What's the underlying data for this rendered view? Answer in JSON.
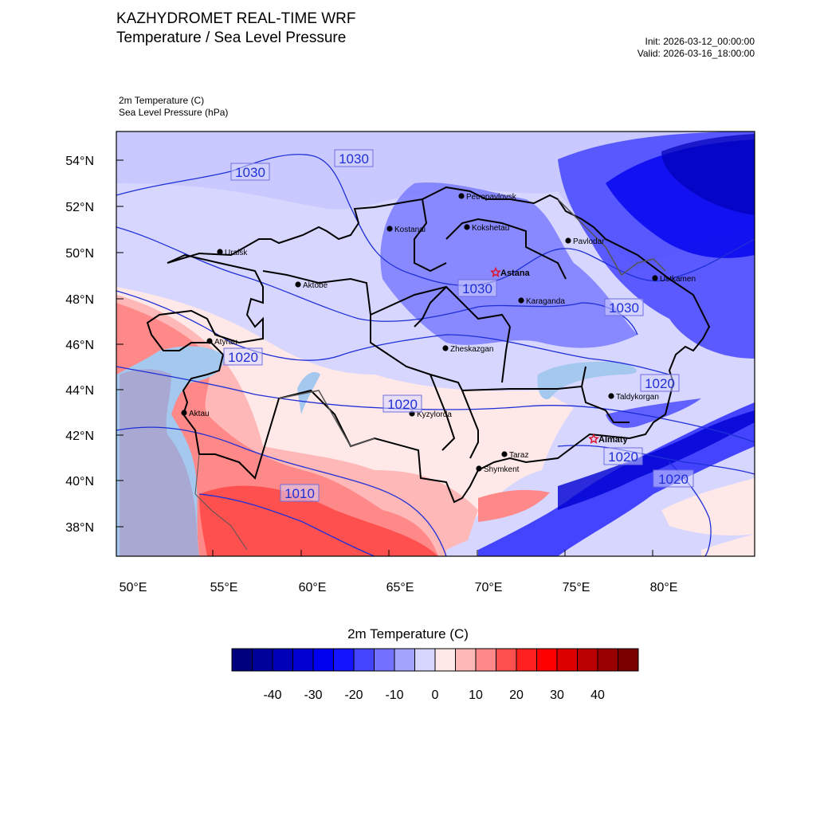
{
  "header": {
    "title": "KAZHYDROMET REAL-TIME WRF",
    "subtitle": "Temperature / Sea Level Pressure",
    "init": "Init: 2026-03-12_00:00:00",
    "valid": "Valid: 2026-03-16_18:00:00"
  },
  "variables": {
    "temperature": "2m Temperature   (C)",
    "pressure": "Sea Level Pressure   (hPa)"
  },
  "map": {
    "lon_labels": [
      "50°E",
      "55°E",
      "60°E",
      "65°E",
      "70°E",
      "75°E",
      "80°E"
    ],
    "lat_labels": [
      "54°N",
      "52°N",
      "50°N",
      "48°N",
      "46°N",
      "44°N",
      "42°N",
      "40°N",
      "38°N"
    ],
    "cities": [
      {
        "name": "Petropavlovsk",
        "capital": false
      },
      {
        "name": "Kostanai",
        "capital": false
      },
      {
        "name": "Kokshetau",
        "capital": false
      },
      {
        "name": "Pavlodar",
        "capital": false
      },
      {
        "name": "Uralsk",
        "capital": false
      },
      {
        "name": "Aktobe",
        "capital": false
      },
      {
        "name": "Astana",
        "capital": true
      },
      {
        "name": "Ustkamen",
        "capital": false
      },
      {
        "name": "Karaganda",
        "capital": false
      },
      {
        "name": "Atyrau",
        "capital": false
      },
      {
        "name": "Zheskazgan",
        "capital": false
      },
      {
        "name": "Taldykorgan",
        "capital": false
      },
      {
        "name": "Aktau",
        "capital": false
      },
      {
        "name": "Kyzylorda",
        "capital": false
      },
      {
        "name": "Almaty",
        "capital": true
      },
      {
        "name": "Taraz",
        "capital": false
      },
      {
        "name": "Shymkent",
        "capital": false
      }
    ],
    "isobar_labels": [
      "1030",
      "1030",
      "1030",
      "1030",
      "1020",
      "1020",
      "1020",
      "1020",
      "1020",
      "1010"
    ]
  },
  "colorbar": {
    "title": "2m Temperature  (C)",
    "ticks": [
      "-40",
      "-30",
      "-20",
      "-10",
      "0",
      "10",
      "20",
      "30",
      "40"
    ],
    "colors": [
      "#00007e",
      "#00009a",
      "#0000b6",
      "#0000d2",
      "#0000ee",
      "#1414ff",
      "#4444ff",
      "#7272ff",
      "#a4a4ff",
      "#d6d6ff",
      "#ffe8e8",
      "#ffb8b8",
      "#ff8888",
      "#ff5050",
      "#ff2020",
      "#ff0000",
      "#dc0000",
      "#ba0000",
      "#980000",
      "#7a0000"
    ]
  }
}
